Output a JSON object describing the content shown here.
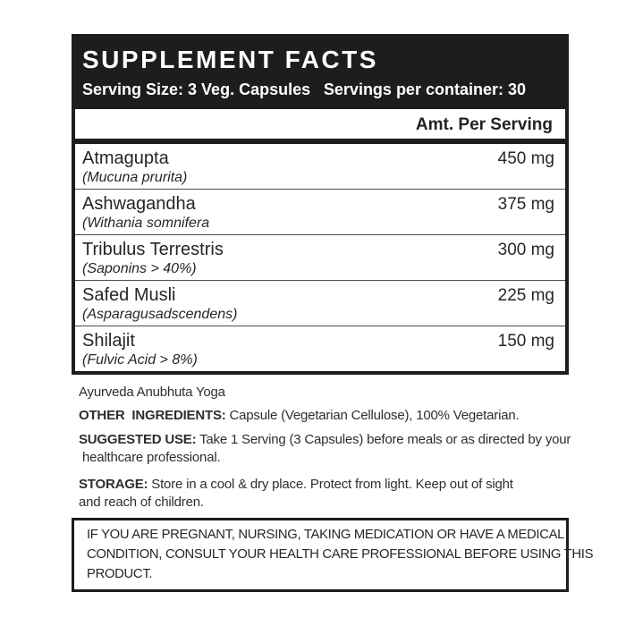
{
  "header": {
    "title": "SUPPLEMENT FACTS",
    "serving_size": "Serving Size: 3 Veg. Capsules",
    "servings_per_container": "Servings per container: 30"
  },
  "table": {
    "amount_header": "Amt. Per Serving",
    "rows": [
      {
        "name": "Atmagupta",
        "detail": "(Mucuna prurita)",
        "amount": "450 mg"
      },
      {
        "name": "Ashwagandha",
        "detail": "(Withania somnifera",
        "amount": "375 mg"
      },
      {
        "name": "Tribulus Terrestris",
        "detail": "(Saponins > 40%)",
        "amount": "300 mg"
      },
      {
        "name": "Safed Musli",
        "detail": "(Asparagusadscendens)",
        "amount": "225 mg"
      },
      {
        "name": "Shilajit",
        "detail": "(Fulvic Acid > 8%)",
        "amount": "150 mg"
      }
    ]
  },
  "notes": {
    "yoga_line": "Ayurveda Anubhuta Yoga",
    "other_ingredients": {
      "label": "OTHER  INGREDIENTS:",
      "text": " Capsule (Vegetarian Cellulose), 100% Vegetarian."
    },
    "suggested_use": {
      "label": "SUGGESTED USE:",
      "lines": [
        " Take 1 Serving (3 Capsules) before meals or as directed by your",
        " healthcare professional."
      ]
    },
    "storage": {
      "label": "STORAGE:",
      "lines": [
        " Store in a cool & dry place. Protect from light. Keep out of sight",
        "and reach of children."
      ]
    }
  },
  "advisory": {
    "lines": [
      "IF YOU ARE PREGNANT, NURSING, TAKING MEDICATION OR HAVE A MEDICAL",
      "CONDITION, CONSULT YOUR HEALTH CARE PROFESSIONAL BEFORE USING THIS",
      "PRODUCT."
    ]
  },
  "colors": {
    "label_black": "#1d1d1d",
    "background": "#ffffff",
    "body_text": "#262626"
  }
}
